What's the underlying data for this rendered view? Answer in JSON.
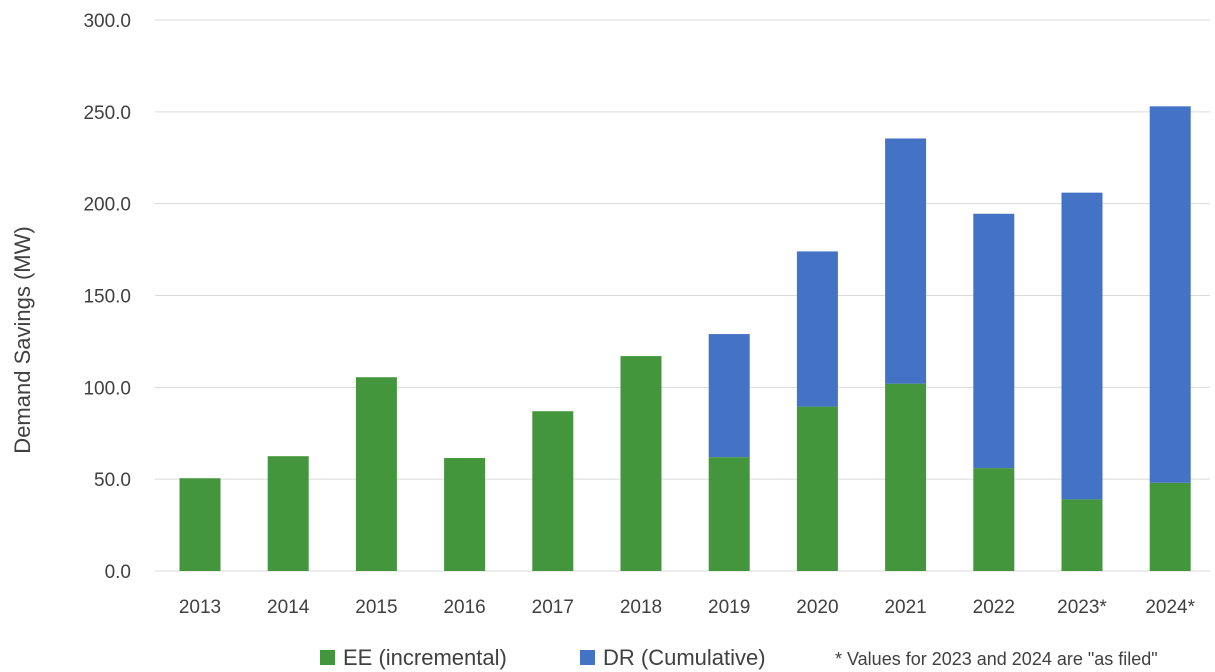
{
  "chart_data": {
    "type": "bar",
    "stacked": true,
    "categories": [
      "2013",
      "2014",
      "2015",
      "2016",
      "2017",
      "2018",
      "2019",
      "2020",
      "2021",
      "2022",
      "2023*",
      "2024*"
    ],
    "series": [
      {
        "name": "EE (incremental)",
        "color": "#43963b",
        "values": [
          50.5,
          62.5,
          105.5,
          61.5,
          87.0,
          117.0,
          62.0,
          89.5,
          102.0,
          56.0,
          39.0,
          48.0
        ]
      },
      {
        "name": "DR (Cumulative)",
        "color": "#4472c4",
        "values": [
          0,
          0,
          0,
          0,
          0,
          0,
          67.0,
          84.5,
          133.5,
          138.5,
          167.0,
          205.0
        ]
      }
    ],
    "title": "",
    "xlabel": "",
    "ylabel": "Demand Savings (MW)",
    "ylim": [
      0,
      300
    ],
    "yticks": [
      "0.0",
      "50.0",
      "100.0",
      "150.0",
      "200.0",
      "250.0",
      "300.0"
    ],
    "grid": true,
    "legend_position": "bottom",
    "note": "* Values for 2023 and 2024 are \"as filed\""
  }
}
